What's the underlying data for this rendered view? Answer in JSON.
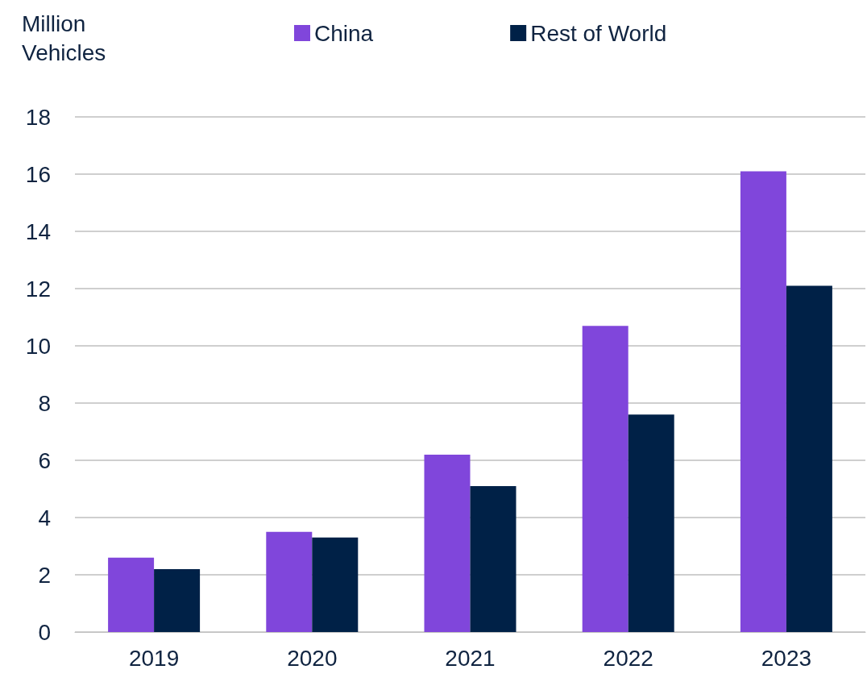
{
  "chart_data": {
    "type": "bar",
    "ylabel": "Million Vehicles",
    "categories": [
      "2019",
      "2020",
      "2021",
      "2022",
      "2023"
    ],
    "series": [
      {
        "name": "China",
        "color": "#8046db",
        "values": [
          2.6,
          3.5,
          6.2,
          10.7,
          16.1
        ]
      },
      {
        "name": "Rest of World",
        "color": "#002147",
        "values": [
          2.2,
          3.3,
          5.1,
          7.6,
          12.1
        ]
      }
    ],
    "ylim": [
      0,
      18
    ],
    "yticks": [
      0,
      2,
      4,
      6,
      8,
      10,
      12,
      14,
      16,
      18
    ],
    "grid": "y",
    "legend": "top"
  }
}
